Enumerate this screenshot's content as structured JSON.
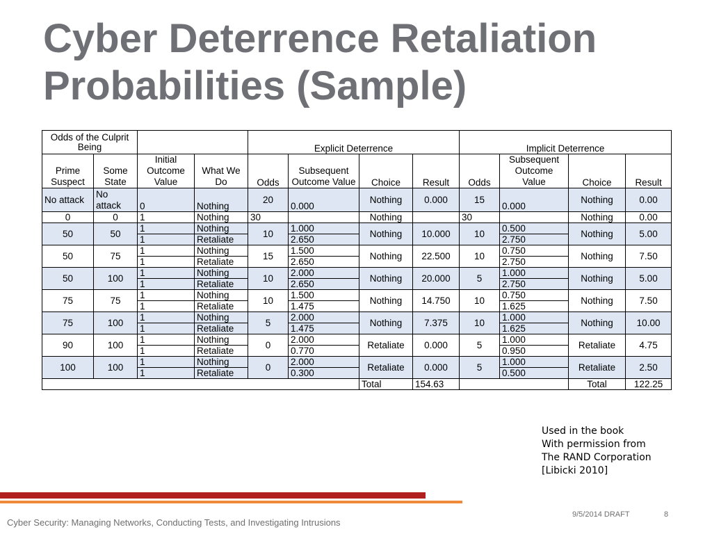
{
  "slide": {
    "title_line1": "Cyber Deterrence Retaliation",
    "title_line2": "Probabilities (Sample)"
  },
  "table": {
    "group_headers": {
      "odds_culprit": "Odds of the Culprit Being",
      "explicit": "Explicit Deterrence",
      "implicit": "Implicit Deterrence"
    },
    "columns": {
      "prime_suspect": "Prime Suspect",
      "some_state": "Some State",
      "initial_outcome": "Initial Outcome Value",
      "what_we_do": "What We Do",
      "exp_odds": "Odds",
      "exp_subsequent": "Subsequent Outcome Value",
      "exp_choice": "Choice",
      "exp_result": "Result",
      "imp_odds": "Odds",
      "imp_subsequent": "Subsequent Outcome Value",
      "imp_choice": "Choice",
      "imp_result": "Result"
    },
    "row_no_attack": {
      "prime": "No attack",
      "state": "No attack",
      "initial": "0",
      "what": "Nothing",
      "exp_odds": "20",
      "exp_sub": "0.000",
      "exp_choice": "Nothing",
      "exp_result": "0.000",
      "imp_odds": "15",
      "imp_sub": "0.000",
      "imp_choice": "Nothing",
      "imp_result": "0.00"
    },
    "row_zero": {
      "prime": "0",
      "state": "0",
      "initial": "1",
      "what": "Nothing",
      "exp_odds": "30",
      "exp_sub": "",
      "exp_choice": "Nothing",
      "exp_result": "",
      "imp_odds": "30",
      "imp_sub": "",
      "imp_choice": "Nothing",
      "imp_result": "0.00"
    },
    "groups": [
      {
        "prime": "50",
        "state": "50",
        "init1": "1",
        "what1": "Nothing",
        "init2": "1",
        "what2": "Retaliate",
        "exp_odds": "10",
        "exp_sub1": "1.000",
        "exp_sub2": "2.650",
        "exp_choice": "Nothing",
        "exp_result": "10.000",
        "imp_odds": "10",
        "imp_sub1": "0.500",
        "imp_sub2": "2.750",
        "imp_choice": "Nothing",
        "imp_result": "5.00"
      },
      {
        "prime": "50",
        "state": "75",
        "init1": "1",
        "what1": "Nothing",
        "init2": "1",
        "what2": "Retaliate",
        "exp_odds": "15",
        "exp_sub1": "1.500",
        "exp_sub2": "2.650",
        "exp_choice": "Nothing",
        "exp_result": "22.500",
        "imp_odds": "10",
        "imp_sub1": "0.750",
        "imp_sub2": "2.750",
        "imp_choice": "Nothing",
        "imp_result": "7.50"
      },
      {
        "prime": "50",
        "state": "100",
        "init1": "1",
        "what1": "Nothing",
        "init2": "1",
        "what2": "Retaliate",
        "exp_odds": "10",
        "exp_sub1": "2.000",
        "exp_sub2": "2.650",
        "exp_choice": "Nothing",
        "exp_result": "20.000",
        "imp_odds": "5",
        "imp_sub1": "1.000",
        "imp_sub2": "2.750",
        "imp_choice": "Nothing",
        "imp_result": "5.00"
      },
      {
        "prime": "75",
        "state": "75",
        "init1": "1",
        "what1": "Nothing",
        "init2": "1",
        "what2": "Retaliate",
        "exp_odds": "10",
        "exp_sub1": "1.500",
        "exp_sub2": "1.475",
        "exp_choice": "Nothing",
        "exp_result": "14.750",
        "imp_odds": "10",
        "imp_sub1": "0.750",
        "imp_sub2": "1.625",
        "imp_choice": "Nothing",
        "imp_result": "7.50"
      },
      {
        "prime": "75",
        "state": "100",
        "init1": "1",
        "what1": "Nothing",
        "init2": "1",
        "what2": "Retaliate",
        "exp_odds": "5",
        "exp_sub1": "2.000",
        "exp_sub2": "1.475",
        "exp_choice": "Nothing",
        "exp_result": "7.375",
        "imp_odds": "10",
        "imp_sub1": "1.000",
        "imp_sub2": "1.625",
        "imp_choice": "Nothing",
        "imp_result": "10.00"
      },
      {
        "prime": "90",
        "state": "100",
        "init1": "1",
        "what1": "Nothing",
        "init2": "1",
        "what2": "Retaliate",
        "exp_odds": "0",
        "exp_sub1": "2.000",
        "exp_sub2": "0.770",
        "exp_choice": "Retaliate",
        "exp_result": "0.000",
        "imp_odds": "5",
        "imp_sub1": "1.000",
        "imp_sub2": "0.950",
        "imp_choice": "Retaliate",
        "imp_result": "4.75"
      },
      {
        "prime": "100",
        "state": "100",
        "init1": "1",
        "what1": "Nothing",
        "init2": "1",
        "what2": "Retaliate",
        "exp_odds": "0",
        "exp_sub1": "2.000",
        "exp_sub2": "0.300",
        "exp_choice": "Retaliate",
        "exp_result": "0.000",
        "imp_odds": "5",
        "imp_sub1": "1.000",
        "imp_sub2": "0.500",
        "imp_choice": "Retaliate",
        "imp_result": "2.50"
      }
    ],
    "total": {
      "exp_label": "Total",
      "exp_value": "154.63",
      "imp_label": "Total",
      "imp_value": "122.25"
    }
  },
  "note": {
    "line1": "Used in the book",
    "line2": "With permission from",
    "line3": "The RAND Corporation",
    "line4": "[Libicki 2010]"
  },
  "footer": {
    "course": "Cyber Security: Managing Networks, Conducting Tests, and Investigating Intrusions",
    "date": "9/5/2014 DRAFT",
    "page": "8"
  },
  "colors": {
    "title": "#6f7075",
    "shaded_row": "#dde6f2",
    "accent_red": "#b21f1f",
    "accent_orange": "#ee8a3a"
  }
}
